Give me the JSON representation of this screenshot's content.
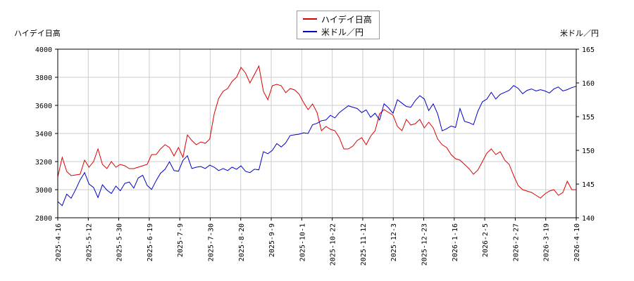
{
  "chart_data": {
    "type": "line",
    "legend_placement": "top-center",
    "left_axis_label": "ハイデイ日高",
    "right_axis_label": "米ドル／円",
    "grid": true,
    "x_ticks": [
      "2025-4-16",
      "2025-5-12",
      "2025-5-30",
      "2025-6-19",
      "2025-7-9",
      "2025-7-30",
      "2025-8-20",
      "2025-9-9",
      "2025-10-1",
      "2025-10-22",
      "2025-11-12",
      "2025-12-3",
      "2025-12-23",
      "2026-1-16",
      "2026-2-5",
      "2026-2-27",
      "2026-3-19",
      "2026-4-10"
    ],
    "ylim_left": [
      2800,
      4000
    ],
    "yticks_left": [
      2800,
      3000,
      3200,
      3400,
      3600,
      3800,
      4000
    ],
    "ylim_right": [
      140,
      165
    ],
    "yticks_right": [
      140,
      145,
      150,
      155,
      160,
      165
    ],
    "series": [
      {
        "name": "ハイデイ日高",
        "axis": "left",
        "color": "#dd0000",
        "values": [
          3090,
          3230,
          3130,
          3100,
          3105,
          3110,
          3210,
          3160,
          3200,
          3290,
          3180,
          3150,
          3200,
          3160,
          3180,
          3170,
          3150,
          3150,
          3160,
          3170,
          3180,
          3250,
          3250,
          3290,
          3320,
          3300,
          3240,
          3300,
          3230,
          3390,
          3350,
          3320,
          3340,
          3330,
          3360,
          3540,
          3650,
          3700,
          3720,
          3770,
          3800,
          3870,
          3830,
          3760,
          3820,
          3880,
          3700,
          3640,
          3740,
          3750,
          3740,
          3690,
          3720,
          3710,
          3680,
          3620,
          3570,
          3610,
          3550,
          3420,
          3450,
          3430,
          3420,
          3370,
          3290,
          3290,
          3310,
          3350,
          3370,
          3320,
          3380,
          3420,
          3540,
          3570,
          3550,
          3530,
          3450,
          3420,
          3500,
          3460,
          3470,
          3500,
          3440,
          3480,
          3440,
          3360,
          3320,
          3300,
          3250,
          3220,
          3210,
          3180,
          3150,
          3110,
          3140,
          3200,
          3260,
          3290,
          3250,
          3270,
          3210,
          3180,
          3100,
          3030,
          3000,
          2990,
          2980,
          2960,
          2940,
          2970,
          2990,
          3000,
          2960,
          2980,
          3060,
          3000,
          3000
        ]
      },
      {
        "name": "米ドル／円",
        "axis": "right",
        "color": "#0000cc",
        "values": [
          142.4,
          141.8,
          143.5,
          142.9,
          144.2,
          145.6,
          146.7,
          145.0,
          144.5,
          143.0,
          144.9,
          144.1,
          143.6,
          144.7,
          144.0,
          145.1,
          145.3,
          144.4,
          145.9,
          146.3,
          144.8,
          144.2,
          145.5,
          146.6,
          147.2,
          148.3,
          147.0,
          146.9,
          148.5,
          149.2,
          147.3,
          147.5,
          147.6,
          147.3,
          147.8,
          147.5,
          147.0,
          147.3,
          147.0,
          147.5,
          147.2,
          147.7,
          146.9,
          146.7,
          147.2,
          147.1,
          149.8,
          149.5,
          150.0,
          151.0,
          150.5,
          151.1,
          152.2,
          152.3,
          152.4,
          152.6,
          152.5,
          153.8,
          154.0,
          154.4,
          154.5,
          155.2,
          154.8,
          155.6,
          156.1,
          156.6,
          156.4,
          156.2,
          155.6,
          156.0,
          154.9,
          155.5,
          154.5,
          156.9,
          156.3,
          155.5,
          157.5,
          157.0,
          156.5,
          156.4,
          157.4,
          158.1,
          157.6,
          155.9,
          156.9,
          155.4,
          152.9,
          153.2,
          153.6,
          153.4,
          156.2,
          154.3,
          154.1,
          153.8,
          155.8,
          157.2,
          157.6,
          158.6,
          157.6,
          158.3,
          158.6,
          158.9,
          159.6,
          159.2,
          158.4,
          158.9,
          159.1,
          158.8,
          159.0,
          158.8,
          158.5,
          159.1,
          159.4,
          158.8,
          159.0,
          159.3,
          159.5
        ]
      }
    ]
  }
}
